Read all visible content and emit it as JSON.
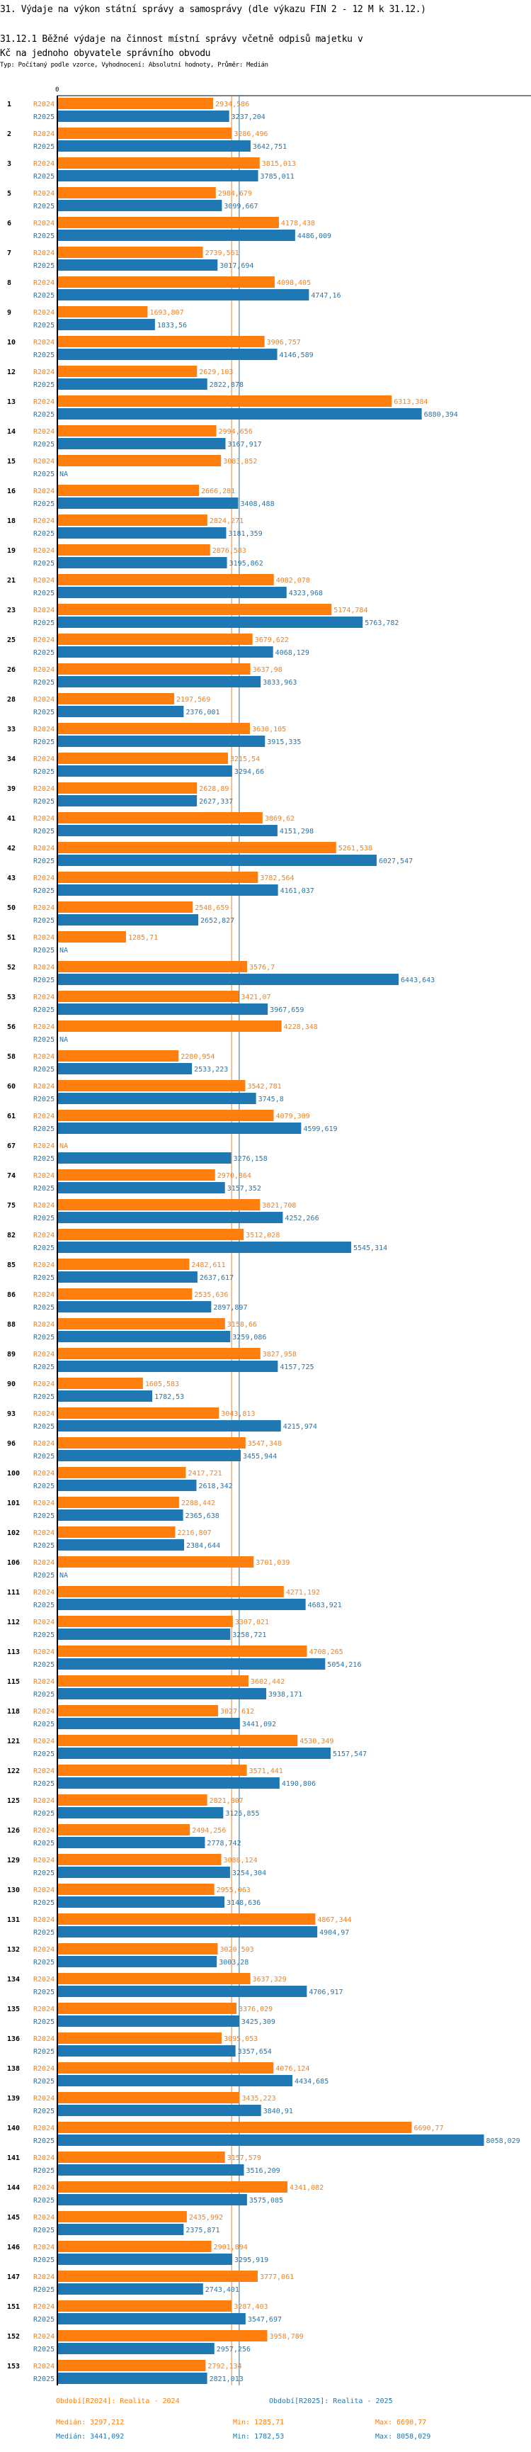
{
  "header": {
    "title": "31. Výdaje na výkon státní správy a samosprávy (dle výkazu FIN 2 - 12 M k 31.12.)",
    "subtitle": "31.12.1 Běžné výdaje na činnost místní správy včetně odpisů majetku v Kč na jednoho obyvatele správního obvodu",
    "meta": "Typ: Počítaný podle vzorce, Vyhodnocení: Absolutní hodnoty, Průměr: Medián"
  },
  "chart_data": {
    "type": "bar",
    "orientation": "horizontal",
    "title": "31.12.1 Běžné výdaje na činnost místní správy včetně odpisů majetku v Kč na jednoho obyvatele správního obvodu",
    "xlabel": "",
    "ylabel": "",
    "axis_zero_label": "0",
    "xlim": [
      0,
      9000
    ],
    "decimal_separator": ",",
    "na_label": "NA",
    "series": [
      {
        "name": "R2024",
        "color": "#ff7f0e",
        "legend": "Období[R2024]: Realita - 2024",
        "median": 3297.212,
        "median_label": "Medián: 3297,212",
        "min_label": "Min: 1285,71",
        "max_label": "Max: 6690,77"
      },
      {
        "name": "R2025",
        "color": "#1f77b4",
        "legend": "Období[R2025]: Realita - 2025",
        "median": 3441.092,
        "median_label": "Medián: 3441,092",
        "min_label": "Min: 1782,53",
        "max_label": "Max: 8058,029"
      }
    ],
    "categories": [
      "1",
      "2",
      "3",
      "5",
      "6",
      "7",
      "8",
      "9",
      "10",
      "12",
      "13",
      "14",
      "15",
      "16",
      "18",
      "19",
      "21",
      "23",
      "25",
      "26",
      "28",
      "33",
      "34",
      "39",
      "41",
      "42",
      "43",
      "50",
      "51",
      "52",
      "53",
      "56",
      "58",
      "60",
      "61",
      "67",
      "74",
      "75",
      "82",
      "85",
      "86",
      "88",
      "89",
      "90",
      "93",
      "96",
      "100",
      "101",
      "102",
      "106",
      "111",
      "112",
      "113",
      "115",
      "118",
      "121",
      "122",
      "125",
      "126",
      "129",
      "130",
      "131",
      "132",
      "134",
      "135",
      "136",
      "138",
      "139",
      "140",
      "141",
      "144",
      "145",
      "146",
      "147",
      "151",
      "152",
      "153"
    ],
    "values": {
      "R2024": [
        2934.586,
        3286.496,
        3815.013,
        2984.679,
        4178.438,
        2739.561,
        4098.405,
        1693.807,
        3906.757,
        2629.103,
        6313.384,
        2994.656,
        3083.852,
        2666.281,
        2824.271,
        2876.583,
        4082.078,
        5174.784,
        3679.622,
        3637.98,
        2197.569,
        3630.105,
        3215.54,
        2628.89,
        3869.62,
        5261.538,
        3782.564,
        2548.659,
        1285.71,
        3576.7,
        3421.07,
        4228.348,
        2280.954,
        3542.781,
        4079.309,
        null,
        2970.864,
        3821.708,
        3512.028,
        2482.611,
        2535.636,
        3158.66,
        3827.958,
        1605.583,
        3043.813,
        3547.348,
        2417.721,
        2288.442,
        2216.807,
        3701.039,
        4271.192,
        3307.021,
        4708.265,
        3602.442,
        3027.612,
        4530.349,
        3571.441,
        2821.807,
        2494.256,
        3088.124,
        2955.063,
        4867.344,
        3020.503,
        3637.329,
        3376.029,
        3095.053,
        4076.124,
        3435.223,
        6690.77,
        3157.579,
        4341.082,
        2435.992,
        2901.894,
        3777.061,
        3287.403,
        3958.789,
        2792.134
      ],
      "R2025": [
        3237.204,
        3642.751,
        3785.011,
        3099.667,
        4486.009,
        3017.694,
        4747.16,
        1833.56,
        4146.589,
        2822.878,
        6880.394,
        3167.917,
        null,
        3408.488,
        3181.359,
        3195.862,
        4323.968,
        5763.782,
        4068.129,
        3833.963,
        2376.001,
        3915.335,
        3294.66,
        2627.337,
        4151.298,
        6027.547,
        4161.037,
        2652.827,
        null,
        6443.643,
        3967.659,
        null,
        2533.223,
        3745.8,
        4599.619,
        3276.158,
        3157.352,
        4252.266,
        5545.314,
        2637.617,
        2897.897,
        3259.086,
        4157.725,
        1782.53,
        4215.974,
        3455.944,
        2618.342,
        2365.638,
        2384.644,
        null,
        4683.921,
        3258.721,
        5054.216,
        3938.171,
        3441.092,
        5157.547,
        4190.806,
        3125.855,
        2778.742,
        3254.304,
        3148.636,
        4904.97,
        3003.28,
        4706.917,
        3425.309,
        3357.654,
        4434.685,
        3840.91,
        8058.029,
        3516.209,
        3575.085,
        2375.871,
        3295.919,
        2743.401,
        3547.697,
        2957.256,
        2821.013
      ]
    },
    "value_labels": {
      "R2024": [
        "2934,586",
        "3286,496",
        "3815,013",
        "2984,679",
        "4178,438",
        "2739,561",
        "4098,405",
        "1693,807",
        "3906,757",
        "2629,103",
        "6313,384",
        "2994,656",
        "3083,852",
        "2666,281",
        "2824,271",
        "2876,583",
        "4082,078",
        "5174,784",
        "3679,622",
        "3637,98",
        "2197,569",
        "3630,105",
        "3215,54",
        "2628,89",
        "3869,62",
        "5261,538",
        "3782,564",
        "2548,659",
        "1285,71",
        "3576,7",
        "3421,07",
        "4228,348",
        "2280,954",
        "3542,781",
        "4079,309",
        "NA",
        "2970,864",
        "3821,708",
        "3512,028",
        "2482,611",
        "2535,636",
        "3158,66",
        "3827,958",
        "1605,583",
        "3043,813",
        "3547,348",
        "2417,721",
        "2288,442",
        "2216,807",
        "3701,039",
        "4271,192",
        "3307,021",
        "4708,265",
        "3602,442",
        "3027,612",
        "4530,349",
        "3571,441",
        "2821,807",
        "2494,256",
        "3088,124",
        "2955,063",
        "4867,344",
        "3020,503",
        "3637,329",
        "3376,029",
        "3095,053",
        "4076,124",
        "3435,223",
        "6690,77",
        "3157,579",
        "4341,082",
        "2435,992",
        "2901,894",
        "3777,061",
        "3287,403",
        "3958,789",
        "2792,134"
      ],
      "R2025": [
        "3237,204",
        "3642,751",
        "3785,011",
        "3099,667",
        "4486,009",
        "3017,694",
        "4747,16",
        "1833,56",
        "4146,589",
        "2822,878",
        "6880,394",
        "3167,917",
        "NA",
        "3408,488",
        "3181,359",
        "3195,862",
        "4323,968",
        "5763,782",
        "4068,129",
        "3833,963",
        "2376,001",
        "3915,335",
        "3294,66",
        "2627,337",
        "4151,298",
        "6027,547",
        "4161,037",
        "2652,827",
        "NA",
        "6443,643",
        "3967,659",
        "NA",
        "2533,223",
        "3745,8",
        "4599,619",
        "3276,158",
        "3157,352",
        "4252,266",
        "5545,314",
        "2637,617",
        "2897,897",
        "3259,086",
        "4157,725",
        "1782,53",
        "4215,974",
        "3455,944",
        "2618,342",
        "2365,638",
        "2384,644",
        "NA",
        "4683,921",
        "3258,721",
        "5054,216",
        "3938,171",
        "3441,092",
        "5157,547",
        "4190,806",
        "3125,855",
        "2778,742",
        "3254,304",
        "3148,636",
        "4904,97",
        "3003,28",
        "4706,917",
        "3425,309",
        "3357,654",
        "4434,685",
        "3840,91",
        "8058,029",
        "3516,209",
        "3575,085",
        "2375,871",
        "3295,919",
        "2743,401",
        "3547,697",
        "2957,256",
        "2821,013"
      ]
    },
    "legend_position": "bottom",
    "median_lines": true,
    "grid": false
  }
}
